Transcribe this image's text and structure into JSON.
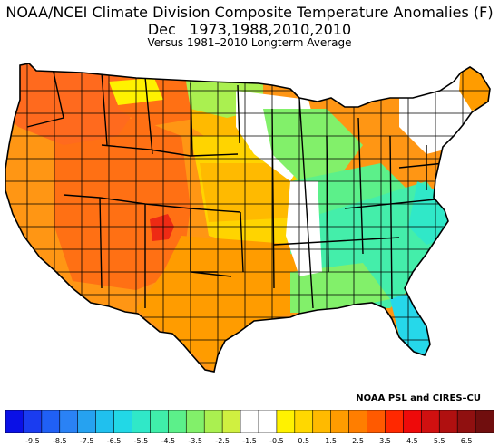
{
  "title_line1": "NOAA/NCEI Climate Division Composite Temperature Anomalies (F)",
  "title_line2": "Dec   1973,1988,2010,2010",
  "title_line3": "Versus 1981–2010 Longterm Average",
  "credit": "NOAA PSL and CIRES–CU",
  "colorbar": {
    "colors": [
      "#0a10e6",
      "#1a3cf0",
      "#2060f5",
      "#2a82f5",
      "#26a2f0",
      "#20c0ee",
      "#22d8e6",
      "#30e8c8",
      "#40eeaa",
      "#5cf08a",
      "#82f06a",
      "#aaf050",
      "#d0f040",
      "#ffffff",
      "#ffffff",
      "#fff200",
      "#ffd800",
      "#ffba00",
      "#ff9c00",
      "#ff7e00",
      "#ff5a00",
      "#ff2800",
      "#ee0a0a",
      "#d01010",
      "#b01010",
      "#901010",
      "#700e0e"
    ],
    "tick_labels": [
      "-9.5",
      "-8.5",
      "-7.5",
      "-6.5",
      "-5.5",
      "-4.5",
      "-3.5",
      "-2.5",
      "-1.5",
      "-0.5",
      "0.5",
      "1.5",
      "2.5",
      "3.5",
      "4.5",
      "5.5",
      "6.5"
    ]
  },
  "map_regions": [
    {
      "name": "pacific-northwest",
      "color": "#ff6a1e"
    },
    {
      "name": "west-coast",
      "color": "#ff9614"
    },
    {
      "name": "great-basin",
      "color": "#ff7014"
    },
    {
      "name": "four-corners-hotspot",
      "color": "#ee2a14"
    },
    {
      "name": "northern-plains",
      "color": "#ffba00"
    },
    {
      "name": "central-plains",
      "color": "#ffd400"
    },
    {
      "name": "texas",
      "color": "#ff9c00"
    },
    {
      "name": "midwest",
      "color": "#ffffff"
    },
    {
      "name": "ohio-valley",
      "color": "#5cf08a"
    },
    {
      "name": "southeast",
      "color": "#44eeaa"
    },
    {
      "name": "florida",
      "color": "#26d8ea"
    },
    {
      "name": "northeast",
      "color": "#ffffff"
    },
    {
      "name": "new-england-north",
      "color": "#ff9c00"
    }
  ]
}
